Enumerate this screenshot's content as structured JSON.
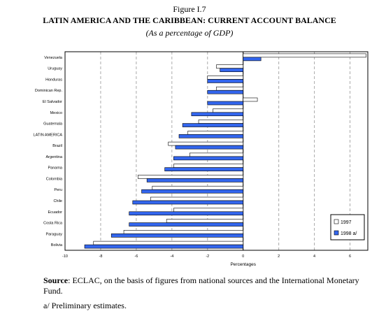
{
  "figure_label": "Figure I.7",
  "title": "LATIN AMERICA AND THE CARIBBEAN: CURRENT ACCOUNT BALANCE",
  "subtitle": "(As a percentage of GDP)",
  "source_label": "Source",
  "source_text": ": ECLAC, on the basis of figures from national sources and the International Monetary Fund.",
  "note": "a/ Preliminary estimates.",
  "colors": {
    "s1997": "#ffffff",
    "s1998": "#3366ee",
    "grid": "#aaaaaa",
    "border": "#000000"
  },
  "chart_data": {
    "type": "bar",
    "orientation": "horizontal",
    "xlabel": "Percentages",
    "xlim": [
      -10,
      7
    ],
    "xticks": [
      -10,
      -8,
      -6,
      -4,
      -2,
      0,
      2,
      4,
      6
    ],
    "grid": "vertical dashed",
    "legend_position": "bottom-right",
    "categories": [
      "Venezuela",
      "Uruguay",
      "Honduras",
      "Dominican Rep.",
      "El Salvador",
      "Mexico",
      "Guatemala",
      "LATIN AMERICA",
      "Brazil",
      "Argentina",
      "Panama",
      "Colombia",
      "Peru",
      "Chile",
      "Ecuador",
      "Costa Rica",
      "Paraguay",
      "Bolivia"
    ],
    "series": [
      {
        "name": "1997",
        "values": [
          6.9,
          -1.5,
          -2.0,
          -1.5,
          0.8,
          -1.7,
          -2.5,
          -3.1,
          -4.2,
          -3.0,
          -3.9,
          -5.9,
          -5.1,
          -5.2,
          -3.9,
          -4.3,
          -6.7,
          -8.4
        ]
      },
      {
        "name": "1998 a/",
        "values": [
          1.0,
          -1.3,
          -2.0,
          -2.0,
          -2.0,
          -2.9,
          -3.4,
          -3.6,
          -3.8,
          -3.9,
          -4.4,
          -5.4,
          -5.7,
          -6.2,
          -6.4,
          -6.4,
          -7.4,
          -8.9
        ]
      }
    ]
  }
}
